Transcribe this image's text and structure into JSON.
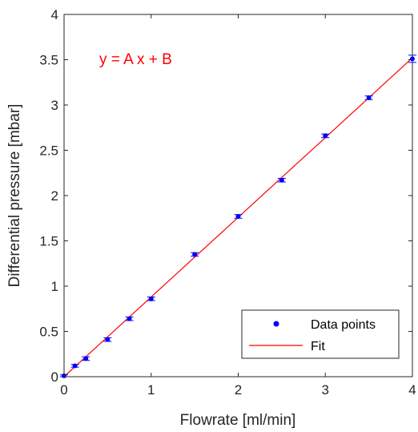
{
  "chart_data": {
    "type": "scatter",
    "title": "",
    "xlabel": "Flowrate [ml/min]",
    "ylabel": "Differential pressure [mbar]",
    "xlim": [
      0,
      4
    ],
    "ylim": [
      0,
      4
    ],
    "x_ticks": [
      "0",
      "1",
      "2",
      "3",
      "4"
    ],
    "y_ticks": [
      "0",
      "0.5",
      "1",
      "1.5",
      "2",
      "2.5",
      "3",
      "3.5",
      "4"
    ],
    "grid": false,
    "legend_position": "bottom-right",
    "annotation": "y = A x + B",
    "colors": {
      "points": "#0000ff",
      "fit": "#ff0000",
      "annotation": "#ff0000",
      "axes": "#262626"
    },
    "series": [
      {
        "name": "Data points",
        "kind": "scatter-errorbar",
        "x": [
          0,
          0.125,
          0.25,
          0.5,
          0.75,
          1,
          1.5,
          2,
          2.5,
          3,
          3.5,
          4
        ],
        "y": [
          0.01,
          0.12,
          0.2,
          0.41,
          0.64,
          0.86,
          1.35,
          1.77,
          2.17,
          2.66,
          3.08,
          3.51
        ],
        "error": [
          0.01,
          0.015,
          0.02,
          0.02,
          0.02,
          0.02,
          0.02,
          0.02,
          0.02,
          0.02,
          0.02,
          0.04
        ]
      },
      {
        "name": "Fit",
        "kind": "line",
        "x": [
          0,
          4
        ],
        "y": [
          0.0,
          3.52
        ]
      }
    ]
  }
}
